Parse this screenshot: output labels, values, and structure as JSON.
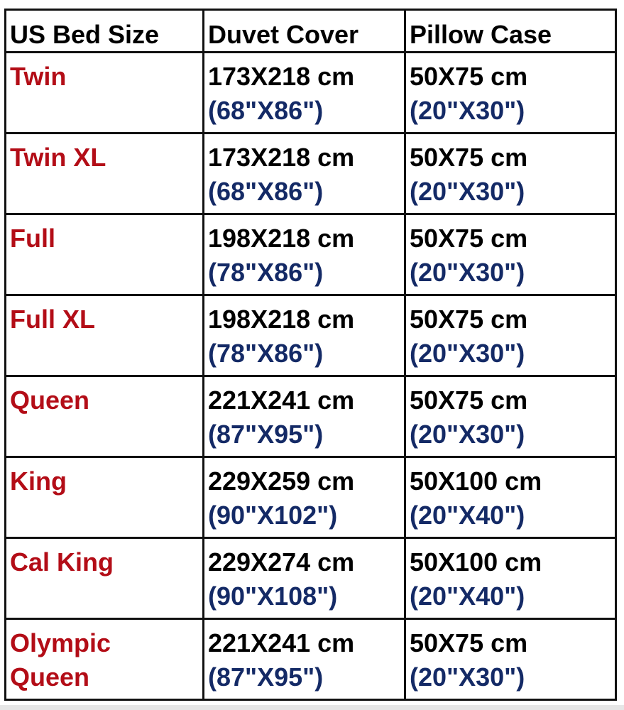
{
  "headers": [
    "US Bed Size",
    "Duvet Cover",
    "Pillow Case"
  ],
  "colors": {
    "size": "#b30d17",
    "metric": "#000000",
    "imperial": "#142a66"
  },
  "rows": [
    {
      "size": "Twin",
      "duvet_cm": "173X218 cm",
      "duvet_in": "(68\"X86\")",
      "pillow_cm": "50X75 cm",
      "pillow_in": "(20\"X30\")"
    },
    {
      "size": "Twin XL",
      "duvet_cm": "173X218 cm",
      "duvet_in": "(68\"X86\")",
      "pillow_cm": "50X75 cm",
      "pillow_in": "(20\"X30\")"
    },
    {
      "size": "Full",
      "duvet_cm": "198X218 cm",
      "duvet_in": "(78\"X86\")",
      "pillow_cm": "50X75 cm",
      "pillow_in": "(20\"X30\")"
    },
    {
      "size": "Full XL",
      "duvet_cm": "198X218 cm",
      "duvet_in": "(78\"X86\")",
      "pillow_cm": "50X75 cm",
      "pillow_in": "(20\"X30\")"
    },
    {
      "size": "Queen",
      "duvet_cm": "221X241 cm",
      "duvet_in": "(87\"X95\")",
      "pillow_cm": "50X75 cm",
      "pillow_in": "(20\"X30\")"
    },
    {
      "size": "King",
      "duvet_cm": "229X259 cm",
      "duvet_in": "(90\"X102\")",
      "pillow_cm": "50X100 cm",
      "pillow_in": "(20\"X40\")"
    },
    {
      "size": "Cal King",
      "duvet_cm": "229X274 cm",
      "duvet_in": "(90\"X108\")",
      "pillow_cm": "50X100 cm",
      "pillow_in": "(20\"X40\")"
    },
    {
      "size": "Olympic Queen",
      "duvet_cm": "221X241 cm",
      "duvet_in": "(87\"X95\")",
      "pillow_cm": "50X75 cm",
      "pillow_in": "(20\"X30\")"
    }
  ]
}
